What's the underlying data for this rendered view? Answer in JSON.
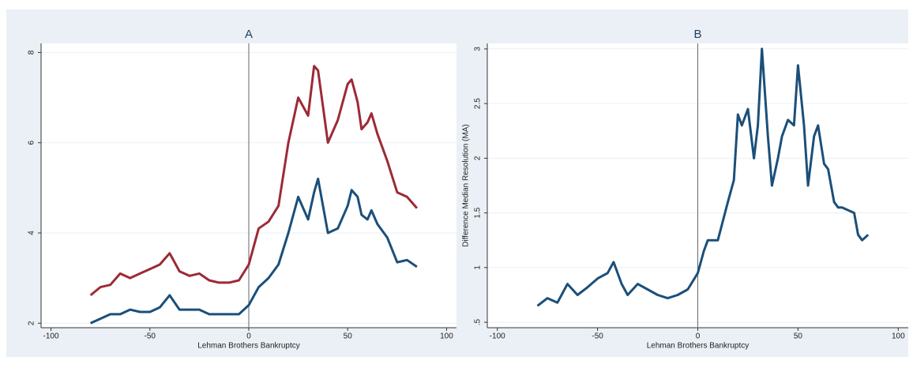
{
  "chart_data": [
    {
      "type": "line",
      "title": "A",
      "xlabel": "Lehman Brothers Bankruptcy",
      "x": [
        -80,
        -75,
        -70,
        -65,
        -60,
        -55,
        -50,
        -45,
        -40,
        -35,
        -30,
        -25,
        -20,
        -15,
        -10,
        -5,
        0,
        5,
        10,
        15,
        20,
        25,
        30,
        33,
        35,
        40,
        45,
        50,
        52,
        55,
        57,
        60,
        62,
        65,
        70,
        75,
        80,
        85
      ],
      "series": [
        {
          "color": "#9c2a36",
          "values": [
            2.62,
            2.8,
            2.85,
            3.1,
            3.0,
            3.1,
            3.2,
            3.3,
            3.55,
            3.15,
            3.05,
            3.1,
            2.95,
            2.9,
            2.9,
            2.95,
            3.3,
            4.1,
            4.25,
            4.6,
            6.0,
            7.0,
            6.6,
            7.7,
            7.6,
            6.0,
            6.5,
            7.3,
            7.4,
            6.9,
            6.3,
            6.45,
            6.65,
            6.2,
            5.6,
            4.9,
            4.8,
            4.55
          ]
        },
        {
          "color": "#1b4f7a",
          "values": [
            2.0,
            2.1,
            2.2,
            2.2,
            2.3,
            2.25,
            2.25,
            2.35,
            2.62,
            2.3,
            2.3,
            2.3,
            2.2,
            2.2,
            2.2,
            2.2,
            2.4,
            2.8,
            3.0,
            3.3,
            4.0,
            4.8,
            4.3,
            4.9,
            5.2,
            4.0,
            4.1,
            4.6,
            4.95,
            4.8,
            4.4,
            4.3,
            4.5,
            4.2,
            3.9,
            3.35,
            3.4,
            3.25
          ]
        }
      ],
      "xlim": [
        -105,
        105
      ],
      "xticks": [
        -100,
        -50,
        0,
        50,
        100
      ],
      "ylim": [
        1.9,
        8.2
      ],
      "yticks": [
        2,
        4,
        6,
        8
      ],
      "vline": 0,
      "grid": true
    },
    {
      "type": "line",
      "title": "B",
      "xlabel": "Lehman Brothers Bankruptcy",
      "ylabel": "Difference Median Resolution (MA)",
      "x": [
        -80,
        -75,
        -70,
        -65,
        -60,
        -55,
        -50,
        -45,
        -42,
        -38,
        -35,
        -30,
        -25,
        -20,
        -15,
        -10,
        -5,
        0,
        3,
        5,
        10,
        15,
        18,
        20,
        22,
        25,
        28,
        30,
        32,
        35,
        37,
        40,
        42,
        45,
        48,
        50,
        53,
        55,
        58,
        60,
        63,
        65,
        68,
        70,
        72,
        78,
        80,
        82,
        85
      ],
      "series": [
        {
          "color": "#1b4f7a",
          "values": [
            0.65,
            0.72,
            0.68,
            0.85,
            0.75,
            0.82,
            0.9,
            0.95,
            1.05,
            0.85,
            0.75,
            0.85,
            0.8,
            0.75,
            0.72,
            0.75,
            0.8,
            0.95,
            1.15,
            1.25,
            1.25,
            1.6,
            1.8,
            2.4,
            2.3,
            2.45,
            2.0,
            2.3,
            3.0,
            2.2,
            1.75,
            2.0,
            2.2,
            2.35,
            2.3,
            2.85,
            2.3,
            1.75,
            2.2,
            2.3,
            1.95,
            1.9,
            1.6,
            1.55,
            1.55,
            1.5,
            1.3,
            1.25,
            1.3
          ]
        }
      ],
      "xlim": [
        -105,
        105
      ],
      "xticks": [
        -100,
        -50,
        0,
        50,
        100
      ],
      "ylim": [
        0.45,
        3.05
      ],
      "yticks": [
        {
          "value": 0.5,
          "label": ".5"
        },
        1,
        1.5,
        2,
        2.5,
        3
      ],
      "vline": 0,
      "grid": true
    }
  ]
}
